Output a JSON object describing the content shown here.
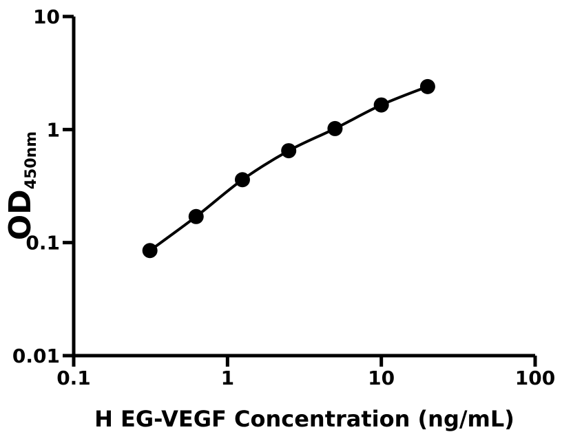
{
  "figure": {
    "background_color": "#ffffff",
    "foreground_color": "#000000"
  },
  "chart_data": {
    "type": "scatter",
    "subtype": "elisa-standard-curve",
    "title": "",
    "xlabel": "H EG-VEGF Concentration (ng/mL)",
    "ylabel": "OD",
    "ylabel_subscript": "450nm",
    "x_scale": "log10",
    "y_scale": "log10",
    "xlim": [
      0.1,
      100
    ],
    "ylim": [
      0.01,
      10
    ],
    "grid": false,
    "legend_position": "none",
    "x_ticks": [
      {
        "value": 0.1,
        "label": "0.1"
      },
      {
        "value": 1,
        "label": "1"
      },
      {
        "value": 10,
        "label": "10"
      },
      {
        "value": 100,
        "label": "100"
      }
    ],
    "y_ticks": [
      {
        "value": 0.01,
        "label": "0.01"
      },
      {
        "value": 0.1,
        "label": "0.1"
      },
      {
        "value": 1,
        "label": "1"
      },
      {
        "value": 10,
        "label": "10"
      }
    ],
    "series": [
      {
        "name": "standard-curve",
        "marker": "filled-circle",
        "marker_color": "#000000",
        "line_color": "#000000",
        "points": [
          {
            "x": 0.313,
            "y": 0.085
          },
          {
            "x": 0.625,
            "y": 0.17
          },
          {
            "x": 1.25,
            "y": 0.36
          },
          {
            "x": 2.5,
            "y": 0.65
          },
          {
            "x": 5,
            "y": 1.02
          },
          {
            "x": 10,
            "y": 1.65
          },
          {
            "x": 20,
            "y": 2.4
          }
        ]
      }
    ]
  }
}
